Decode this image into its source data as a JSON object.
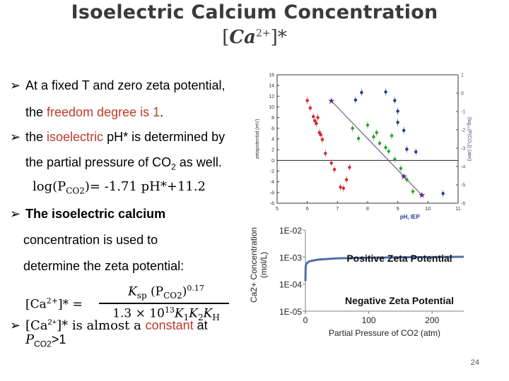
{
  "slide": {
    "title": "Isoelectric Calcium Concentration",
    "title_formula": {
      "prefix": "[",
      "base": "Ca",
      "sup": "2+",
      "suffix": "]*"
    },
    "bullet1": {
      "lead": "At a fixed T and zero zeta potential,",
      "l2_pre": "the ",
      "l2_red": "freedom degree is 1",
      "l2_post": "."
    },
    "bullet2": {
      "pre": "the ",
      "red": "isoelectric",
      "post": " pH* is determined by",
      "l2_pre": "the partial pressure of CO",
      "l2_sub": "2",
      "l2_post": " as well."
    },
    "equation1": {
      "lhs": "log(P",
      "sub": "CO2",
      "rhs": ")= -1.71 pH*+11.2"
    },
    "bullet3": {
      "bold": "The isoelectric calcium",
      "l2": "concentration is used to",
      "l3": "determine the zeta potential:"
    },
    "equation2": {
      "lhs": "[Ca",
      "lhs_sup": "2+",
      "lhs_end": "]* =",
      "num": "K",
      "num_sub": "sp",
      "num_mid": " (P",
      "num_sub2": "CO2",
      "num_end": ")",
      "num_exp": "0.17",
      "den": "1.3 × 10",
      "den_exp": "13",
      "den_end": "K",
      "den_sub1": "1",
      "den_k2": "K",
      "den_sub2": "2",
      "den_k3": "K",
      "den_sub3": "H"
    },
    "bullet4": {
      "pre": "[Ca",
      "sup": "2+",
      "mid": "]* is almost a ",
      "red": "constant",
      "post": " at",
      "l2_pre": "P",
      "l2_sub": "CO2",
      "l2_post": ">1"
    },
    "page_number": "24"
  },
  "colors": {
    "red": "#c0392b",
    "title": "#3a3a3a",
    "curve": "#4f6fa5"
  },
  "chart_data": [
    {
      "type": "scatter",
      "title": "",
      "xlabel": "pH, IEP",
      "ylabel": "zetapotential (mV)",
      "y2label": "(log₁₀(P(CO₂)) (atm)",
      "xlim": [
        5,
        11
      ],
      "ylim": [
        -8,
        16
      ],
      "y2lim": [
        -6,
        1
      ],
      "x_ticks": [
        "5",
        "6",
        "7",
        "8",
        "9",
        "10",
        "11"
      ],
      "y_ticks": [
        "-8",
        "-6",
        "-4",
        "-2",
        "0",
        "2",
        "4",
        "6",
        "8",
        "10",
        "12",
        "14",
        "16"
      ],
      "y2_ticks": [
        "-6",
        "-5",
        "-4",
        "-3",
        "-2",
        "-1",
        "0",
        "1"
      ],
      "series": [
        {
          "color": "#d62728",
          "points": [
            [
              6.0,
              11.2
            ],
            [
              6.1,
              9.8
            ],
            [
              6.2,
              8.2
            ],
            [
              6.25,
              7.4
            ],
            [
              6.3,
              6.9
            ],
            [
              6.35,
              8.0
            ],
            [
              6.4,
              5.2
            ],
            [
              6.45,
              4.8
            ],
            [
              6.5,
              3.9
            ],
            [
              6.6,
              1.3
            ],
            [
              6.8,
              -0.5
            ],
            [
              6.9,
              -1.7
            ],
            [
              7.2,
              -5.2
            ],
            [
              7.1,
              -5.0
            ],
            [
              7.3,
              -3.6
            ],
            [
              7.4,
              -1.3
            ]
          ]
        },
        {
          "color": "#2ca02c",
          "points": [
            [
              7.5,
              6.0
            ],
            [
              7.7,
              4.1
            ],
            [
              8.0,
              6.6
            ],
            [
              8.2,
              4.4
            ],
            [
              8.3,
              5.2
            ],
            [
              8.4,
              3.2
            ],
            [
              8.6,
              2.4
            ],
            [
              8.7,
              1.7
            ],
            [
              8.9,
              0.2
            ],
            [
              9.1,
              -1.5
            ],
            [
              9.3,
              -3.6
            ],
            [
              9.5,
              -5.8
            ],
            [
              8.8,
              4.6
            ]
          ]
        },
        {
          "color": "#1f3b8a",
          "points": [
            [
              7.6,
              11.3
            ],
            [
              7.8,
              12.7
            ],
            [
              8.6,
              12.8
            ],
            [
              8.9,
              11.2
            ],
            [
              9.0,
              9.2
            ],
            [
              9.0,
              7.1
            ],
            [
              9.2,
              5.6
            ],
            [
              9.3,
              2.1
            ],
            [
              9.6,
              1.6
            ],
            [
              10.5,
              -6.2
            ]
          ]
        }
      ],
      "iep_line": {
        "x": [
          6.8,
          9.8
        ],
        "log_pco2": [
          -0.43,
          -5.56
        ]
      },
      "stars": [
        [
          6.8,
          -0.43
        ],
        [
          9.2,
          -4.53
        ],
        [
          9.8,
          -5.56
        ]
      ]
    },
    {
      "type": "line",
      "title": "",
      "xlabel": "Partial Pressure of CO2 (atm)",
      "ylabel": "Ca2+ Concentration (mol/L)",
      "y_scale": "log",
      "ylim": [
        1e-05,
        0.01
      ],
      "xlim": [
        0,
        250
      ],
      "x_ticks": [
        "0",
        "100",
        "200"
      ],
      "y_ticks": [
        "1E-02",
        "1E-03",
        "1E-04",
        "1E-05"
      ],
      "annotations": [
        "Positive Zeta Potential",
        "Negative Zeta Potential"
      ],
      "series": [
        {
          "x": [
            0.05,
            0.5,
            1,
            2,
            5,
            10,
            20,
            50,
            100,
            150,
            200,
            250
          ],
          "y": [
            0.00013,
            0.00045,
            0.00052,
            0.00058,
            0.00067,
            0.00073,
            0.0008,
            0.0009,
            0.00095,
            0.00098,
            0.001,
            0.00102
          ]
        }
      ]
    }
  ]
}
